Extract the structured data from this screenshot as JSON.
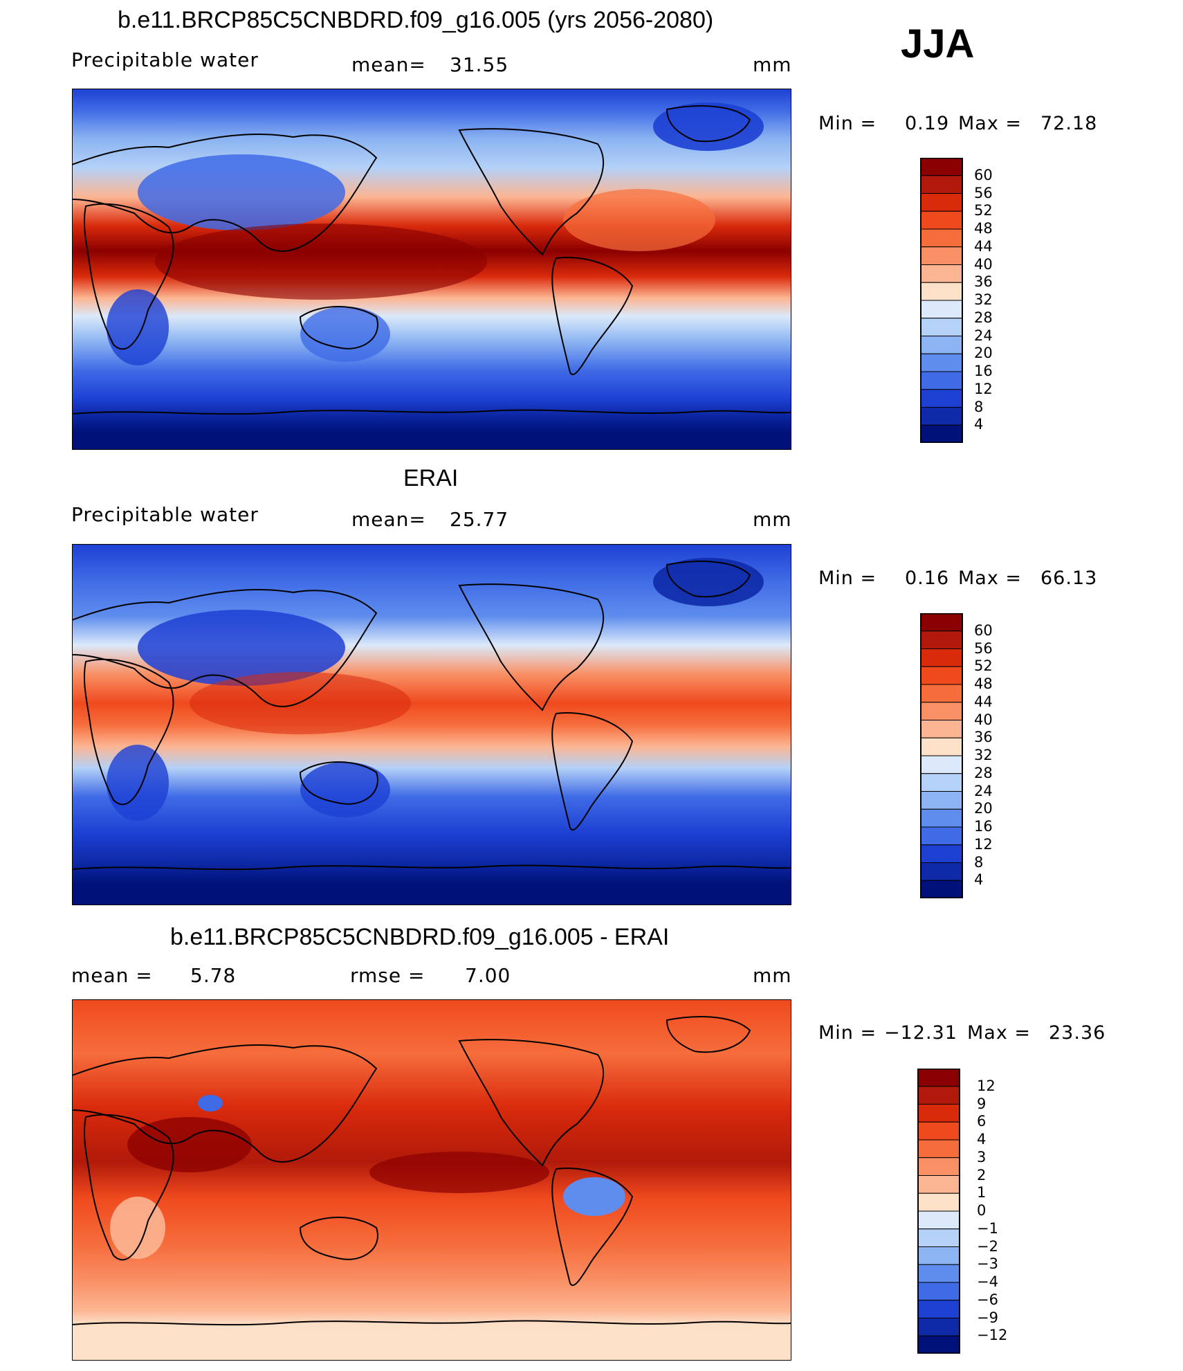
{
  "season": "JJA",
  "units": "mm",
  "panels": [
    {
      "id": "model",
      "title": "b.e11.BRCP85C5CNBDRD.f09_g16.005 (yrs 2056-2080)",
      "variable": "Precipitable water",
      "mean_label": "mean=",
      "mean_value": "31.55",
      "units": "mm",
      "min_label": "Min =",
      "min_value": "0.19",
      "max_label": "Max =",
      "max_value": "72.18",
      "colorbar": {
        "labels": [
          "60",
          "56",
          "52",
          "48",
          "44",
          "40",
          "36",
          "32",
          "28",
          "24",
          "20",
          "16",
          "12",
          "8",
          "4"
        ],
        "colors": [
          "#8b0000",
          "#b11a0a",
          "#d92a0c",
          "#ef4a1e",
          "#f66d3c",
          "#f99065",
          "#fcb592",
          "#fde0c8",
          "#dbe9fa",
          "#b4d1f7",
          "#8cb4f2",
          "#5f8ded",
          "#3f6be6",
          "#1d40d3",
          "#0e2aa8",
          "#00127a"
        ]
      }
    },
    {
      "id": "obs",
      "title": "ERAI",
      "variable": "Precipitable water",
      "mean_label": "mean=",
      "mean_value": "25.77",
      "units": "mm",
      "min_label": "Min =",
      "min_value": "0.16",
      "max_label": "Max =",
      "max_value": "66.13",
      "colorbar": {
        "labels": [
          "60",
          "56",
          "52",
          "48",
          "44",
          "40",
          "36",
          "32",
          "28",
          "24",
          "20",
          "16",
          "12",
          "8",
          "4"
        ],
        "colors": [
          "#8b0000",
          "#b11a0a",
          "#d92a0c",
          "#ef4a1e",
          "#f66d3c",
          "#f99065",
          "#fcb592",
          "#fde0c8",
          "#dbe9fa",
          "#b4d1f7",
          "#8cb4f2",
          "#5f8ded",
          "#3f6be6",
          "#1d40d3",
          "#0e2aa8",
          "#00127a"
        ]
      }
    },
    {
      "id": "diff",
      "title": "b.e11.BRCP85C5CNBDRD.f09_g16.005 - ERAI",
      "mean_label": "mean =",
      "mean_value": "5.78",
      "rmse_label": "rmse =",
      "rmse_value": "7.00",
      "units": "mm",
      "min_label": "Min =",
      "min_value": "−12.31",
      "max_label": "Max =",
      "max_value": "23.36",
      "colorbar": {
        "labels": [
          "12",
          "9",
          "6",
          "4",
          "3",
          "2",
          "1",
          "0",
          "−1",
          "−2",
          "−3",
          "−4",
          "−6",
          "−9",
          "−12"
        ],
        "colors": [
          "#8b0000",
          "#b11a0a",
          "#d92a0c",
          "#ef4a1e",
          "#f66d3c",
          "#f99065",
          "#fcb592",
          "#fde0c8",
          "#dbe9fa",
          "#b4d1f7",
          "#8cb4f2",
          "#5f8ded",
          "#3f6be6",
          "#1d40d3",
          "#0e2aa8",
          "#00127a"
        ]
      }
    }
  ]
}
